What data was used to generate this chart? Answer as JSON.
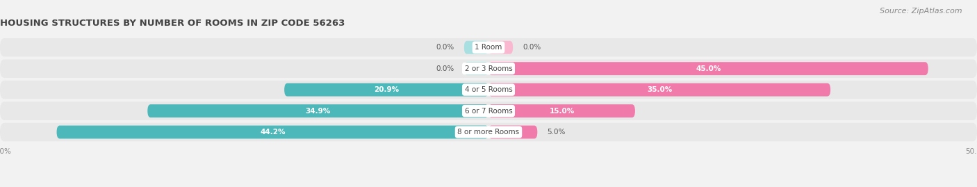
{
  "title": "HOUSING STRUCTURES BY NUMBER OF ROOMS IN ZIP CODE 56263",
  "source": "Source: ZipAtlas.com",
  "categories": [
    "1 Room",
    "2 or 3 Rooms",
    "4 or 5 Rooms",
    "6 or 7 Rooms",
    "8 or more Rooms"
  ],
  "owner_values": [
    0.0,
    0.0,
    20.9,
    34.9,
    44.2
  ],
  "renter_values": [
    0.0,
    45.0,
    35.0,
    15.0,
    5.0
  ],
  "owner_color": "#4db8ba",
  "renter_color": "#f07aaa",
  "owner_light": "#a8dfe0",
  "renter_light": "#f9b8d0",
  "bg_color": "#f2f2f2",
  "row_bg_color": "#e8e8e8",
  "xlim": [
    -50,
    50
  ],
  "title_fontsize": 9.5,
  "source_fontsize": 8,
  "label_fontsize": 7.5,
  "category_fontsize": 7.5,
  "bar_height": 0.62,
  "figsize": [
    14.06,
    2.69
  ],
  "dpi": 100
}
